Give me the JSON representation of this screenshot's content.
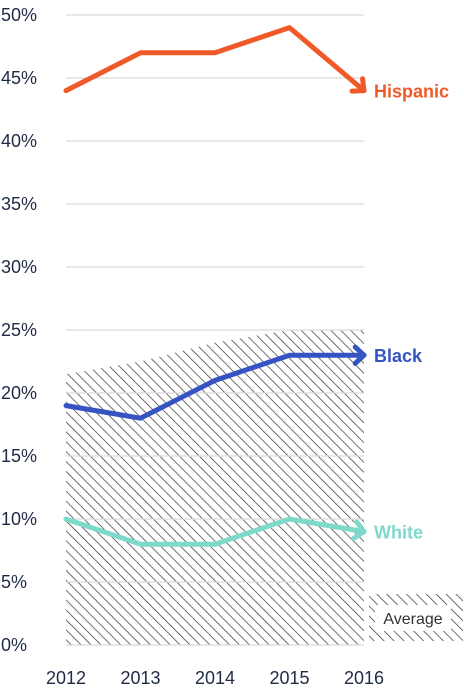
{
  "chart_data": {
    "type": "line",
    "x": [
      "2012",
      "2013",
      "2014",
      "2015",
      "2016"
    ],
    "ylim": [
      0,
      50
    ],
    "yticks": [
      "0%",
      "5%",
      "10%",
      "15%",
      "20%",
      "25%",
      "30%",
      "35%",
      "40%",
      "45%",
      "50%"
    ],
    "grid": true,
    "series": [
      {
        "name": "Hispanic",
        "values": [
          44,
          47,
          47,
          49,
          44
        ],
        "color": "#f05a28"
      },
      {
        "name": "Black",
        "values": [
          19,
          18,
          21,
          23,
          23
        ],
        "color": "#3653c4"
      },
      {
        "name": "White",
        "values": [
          10,
          8,
          8,
          10,
          9
        ],
        "color": "#7dd9c9"
      }
    ],
    "average_band": {
      "label": "Average",
      "values": [
        21.5,
        22.5,
        24,
        25,
        25
      ]
    }
  }
}
